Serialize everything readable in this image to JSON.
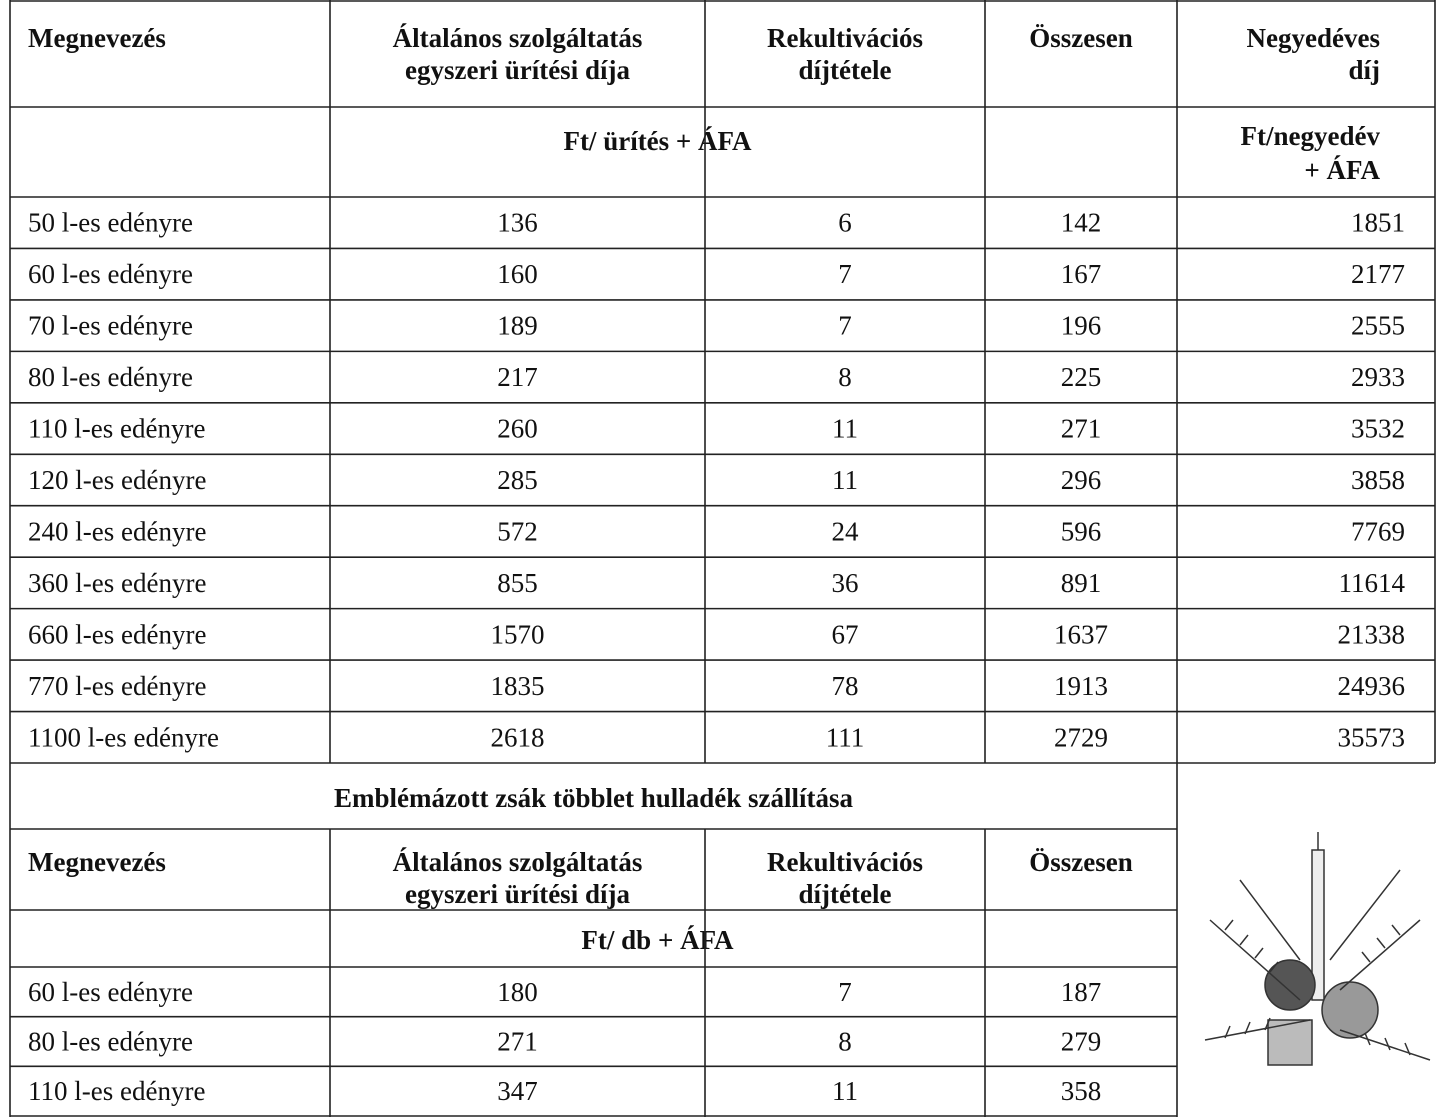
{
  "table1": {
    "headers": [
      [
        "Megnevezés"
      ],
      [
        "Általános szolgáltatás",
        "egyszeri ürítési díja"
      ],
      [
        "Rekultivációs",
        "díjtétele"
      ],
      [
        "Összesen"
      ],
      [
        "Negyedéves",
        "díj"
      ]
    ],
    "unit": "Ft/ ürítés + ÁFA",
    "unit_last": [
      "Ft/negyedév",
      "+ ÁFA"
    ],
    "rows": [
      [
        "50 l-es edényre",
        136,
        6,
        142,
        1851
      ],
      [
        "60 l-es edényre",
        160,
        7,
        167,
        2177
      ],
      [
        "70 l-es edényre",
        189,
        7,
        196,
        2555
      ],
      [
        "80 l-es edényre",
        217,
        8,
        225,
        2933
      ],
      [
        "110 l-es edényre",
        260,
        11,
        271,
        3532
      ],
      [
        "120 l-es edényre",
        285,
        11,
        296,
        3858
      ],
      [
        "240 l-es edényre",
        572,
        24,
        596,
        7769
      ],
      [
        "360 l-es edényre",
        855,
        36,
        891,
        11614
      ],
      [
        "660 l-es edényre",
        1570,
        67,
        1637,
        21338
      ],
      [
        "770 l-es edényre",
        1835,
        78,
        1913,
        24936
      ],
      [
        "1100 l-es edényre",
        2618,
        111,
        2729,
        35573
      ]
    ]
  },
  "table2": {
    "title": "Emblémázott zsák többlet hulladék szállítása",
    "headers": [
      [
        "Megnevezés"
      ],
      [
        "Általános szolgáltatás",
        "egyszeri ürítési díja"
      ],
      [
        "Rekultivációs",
        "díjtétele"
      ],
      [
        "Összesen"
      ]
    ],
    "unit": "Ft/ db + ÁFA",
    "rows": [
      [
        "60 l-es edényre",
        180,
        7,
        187
      ],
      [
        "80 l-es edényre",
        271,
        8,
        279
      ],
      [
        "110 l-es edényre",
        347,
        11,
        358
      ]
    ]
  }
}
